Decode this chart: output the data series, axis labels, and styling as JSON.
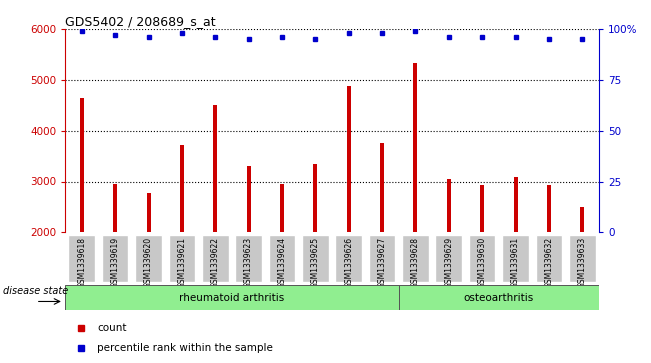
{
  "title": "GDS5402 / 208689_s_at",
  "samples": [
    "GSM1339618",
    "GSM1339619",
    "GSM1339620",
    "GSM1339621",
    "GSM1339622",
    "GSM1339623",
    "GSM1339624",
    "GSM1339625",
    "GSM1339626",
    "GSM1339627",
    "GSM1339628",
    "GSM1339629",
    "GSM1339630",
    "GSM1339631",
    "GSM1339632",
    "GSM1339633"
  ],
  "counts": [
    4650,
    2950,
    2780,
    3720,
    4500,
    3300,
    2950,
    3350,
    4870,
    3760,
    5330,
    3050,
    2930,
    3080,
    2930,
    2500
  ],
  "percentile_ranks": [
    99,
    97,
    96,
    98,
    96,
    95,
    96,
    95,
    98,
    98,
    99,
    96,
    96,
    96,
    95,
    95
  ],
  "ylim_left": [
    2000,
    6000
  ],
  "ylim_right": [
    0,
    100
  ],
  "yticks_left": [
    2000,
    3000,
    4000,
    5000,
    6000
  ],
  "yticks_right": [
    0,
    25,
    50,
    75,
    100
  ],
  "bar_color": "#cc0000",
  "dot_color": "#0000cc",
  "rheumatoid_count": 10,
  "osteoarthritis_count": 6,
  "legend_count_label": "count",
  "legend_percentile_label": "percentile rank within the sample",
  "disease_state_label": "disease state",
  "rheumatoid_label": "rheumatoid arthritis",
  "osteoarthritis_label": "osteoarthritis",
  "green_color": "#90ee90",
  "gray_box_color": "#c8c8c8",
  "dotted_grid_levels": [
    3000,
    4000,
    5000
  ]
}
